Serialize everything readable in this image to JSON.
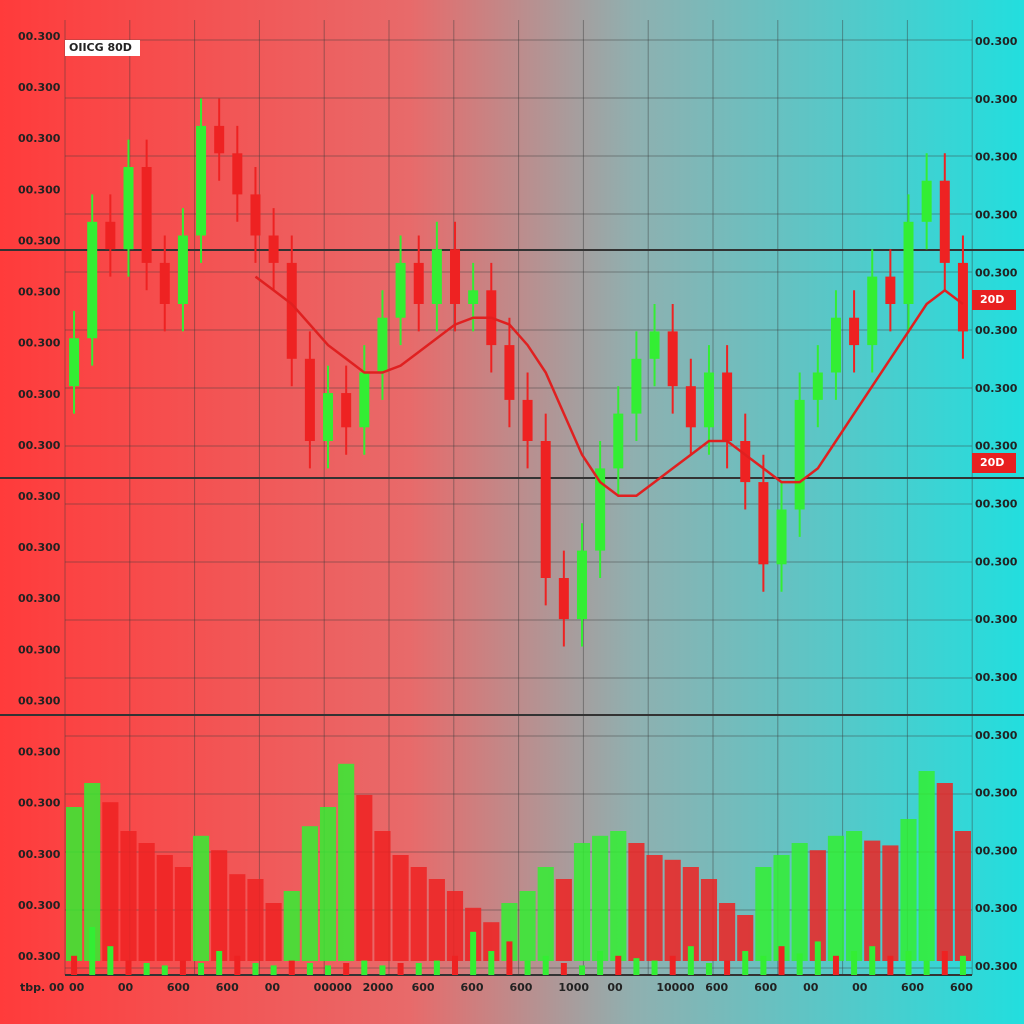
{
  "chart_data": {
    "type": "candlestick",
    "title": "OIICG 80D",
    "tags": [
      "20D",
      "20D"
    ],
    "left_labels": [
      "00.300",
      "00.300",
      "00.300",
      "00.300",
      "00.300",
      "00.300",
      "00.300",
      "00.300",
      "00.300",
      "00.300",
      "00.300",
      "00.300",
      "00.300",
      "00.300",
      "00.300",
      "00.300",
      "00.300",
      "00.300",
      "00.300"
    ],
    "right_labels": [
      "00.300",
      "00.300",
      "00.300",
      "00.300",
      "00.300",
      "00.300",
      "00.300",
      "00.300",
      "00.300",
      "00.300",
      "00.300",
      "00.300",
      "00.300",
      "00.300",
      "00.300",
      "00.300",
      "00.300"
    ],
    "bottom_labels": [
      "tbp. 00",
      "00",
      "00",
      "600",
      "600",
      "00",
      "00000",
      "2000",
      "600",
      "600",
      "600",
      "1000",
      "00",
      "10000",
      "600",
      "600",
      "00",
      "00",
      "600",
      "600"
    ],
    "ylim": [
      0,
      100
    ],
    "up_color": "#33ee33",
    "down_color": "#ee2222",
    "open": [
      48,
      55,
      72,
      68,
      80,
      66,
      60,
      70,
      86,
      82,
      76,
      70,
      66,
      52,
      40,
      47,
      42,
      50,
      58,
      66,
      60,
      68,
      60,
      62,
      54,
      46,
      40,
      20,
      14,
      24,
      36,
      44,
      52,
      56,
      48,
      42,
      50,
      40,
      34,
      22,
      30,
      46,
      50,
      58,
      54,
      64,
      60,
      72,
      78,
      66
    ],
    "high": [
      59,
      76,
      76,
      84,
      84,
      70,
      74,
      90,
      90,
      86,
      80,
      74,
      70,
      56,
      51,
      51,
      54,
      62,
      70,
      70,
      72,
      72,
      66,
      66,
      58,
      50,
      44,
      24,
      28,
      40,
      48,
      56,
      60,
      60,
      52,
      54,
      54,
      44,
      38,
      34,
      50,
      54,
      62,
      62,
      68,
      68,
      76,
      82,
      82,
      70
    ],
    "low": [
      44,
      51,
      64,
      64,
      62,
      56,
      56,
      66,
      78,
      72,
      66,
      62,
      48,
      36,
      36,
      38,
      38,
      46,
      54,
      56,
      56,
      56,
      56,
      50,
      42,
      36,
      16,
      10,
      10,
      20,
      32,
      40,
      48,
      44,
      38,
      38,
      36,
      30,
      18,
      18,
      26,
      42,
      46,
      50,
      50,
      56,
      56,
      68,
      62,
      52
    ],
    "close": [
      55,
      72,
      68,
      80,
      66,
      60,
      70,
      86,
      82,
      76,
      70,
      66,
      52,
      40,
      47,
      42,
      50,
      58,
      66,
      60,
      68,
      60,
      62,
      54,
      46,
      40,
      20,
      14,
      24,
      36,
      44,
      52,
      56,
      48,
      42,
      50,
      40,
      34,
      22,
      30,
      46,
      50,
      58,
      54,
      64,
      60,
      72,
      78,
      66,
      56
    ],
    "ma": {
      "color": "#e02020",
      "values": [
        null,
        null,
        null,
        null,
        null,
        null,
        null,
        null,
        null,
        null,
        64,
        62,
        60,
        57,
        54,
        52,
        50,
        50,
        51,
        53,
        55,
        57,
        58,
        58,
        57,
        54,
        50,
        44,
        38,
        34,
        32,
        32,
        34,
        36,
        38,
        40,
        40,
        38,
        36,
        34,
        34,
        36,
        40,
        44,
        48,
        52,
        56,
        60,
        62,
        60
      ]
    },
    "indicator_lim": [
      0,
      100
    ],
    "indicator": [
      70,
      80,
      72,
      60,
      55,
      50,
      45,
      58,
      52,
      42,
      40,
      30,
      35,
      62,
      70,
      88,
      75,
      60,
      50,
      45,
      40,
      35,
      28,
      22,
      30,
      35,
      45,
      40,
      55,
      58,
      60,
      55,
      50,
      48,
      45,
      40,
      30,
      25,
      45,
      50,
      55,
      52,
      58,
      60,
      56,
      54,
      65,
      85,
      80,
      60
    ],
    "volume": [
      8,
      20,
      12,
      6,
      5,
      4,
      6,
      5,
      10,
      8,
      5,
      4,
      6,
      5,
      4,
      5,
      6,
      4,
      5,
      5,
      6,
      8,
      18,
      10,
      14,
      6,
      8,
      5,
      4,
      10,
      8,
      7,
      6,
      8,
      12,
      5,
      6,
      10,
      8,
      12,
      9,
      14,
      8,
      10,
      12,
      8,
      10,
      6,
      10,
      8
    ]
  }
}
